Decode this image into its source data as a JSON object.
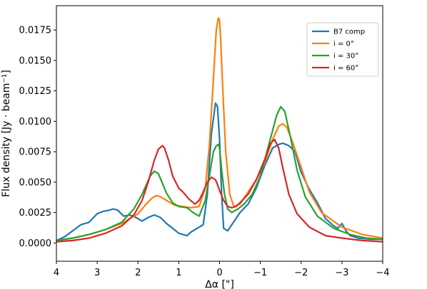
{
  "chart_data": {
    "type": "line",
    "xlabel": "Δα [\"]",
    "ylabel": "Flux density [Jy · beam⁻¹]",
    "xlim": [
      4,
      -4
    ],
    "ylim": [
      -0.0015,
      0.0195
    ],
    "x_ticks": [
      4,
      3,
      2,
      1,
      0,
      -1,
      -2,
      -3,
      -4
    ],
    "x_tick_labels": [
      "4",
      "3",
      "2",
      "1",
      "0",
      "−1",
      "−2",
      "−3",
      "−4"
    ],
    "y_ticks": [
      0,
      0.0025,
      0.005,
      0.0075,
      0.01,
      0.0125,
      0.015,
      0.0175
    ],
    "y_tick_labels": [
      "0.0000",
      "0.0025",
      "0.0050",
      "0.0075",
      "0.0100",
      "0.0125",
      "0.0150",
      "0.0175"
    ],
    "grid": false,
    "legend_position": "top-right",
    "series": [
      {
        "name": "B7 comp",
        "color": "#1f77b4",
        "x": [
          4.0,
          3.8,
          3.6,
          3.4,
          3.2,
          3.0,
          2.85,
          2.7,
          2.6,
          2.5,
          2.35,
          2.2,
          2.05,
          1.9,
          1.75,
          1.6,
          1.45,
          1.3,
          1.15,
          1.0,
          0.8,
          0.7,
          0.55,
          0.4,
          0.3,
          0.2,
          0.1,
          0.05,
          0.0,
          -0.05,
          -0.1,
          -0.2,
          -0.3,
          -0.4,
          -0.5,
          -0.7,
          -0.9,
          -1.1,
          -1.3,
          -1.45,
          -1.55,
          -1.7,
          -1.85,
          -2.0,
          -2.2,
          -2.4,
          -2.6,
          -2.8,
          -2.9,
          -3.0,
          -3.1,
          -3.2,
          -3.4,
          -3.7,
          -4.0
        ],
        "y": [
          0.0002,
          0.0005,
          0.001,
          0.0015,
          0.0017,
          0.0024,
          0.0026,
          0.0027,
          0.0028,
          0.0027,
          0.0022,
          0.0023,
          0.0021,
          0.0018,
          0.0021,
          0.0023,
          0.0021,
          0.0016,
          0.0012,
          0.0008,
          0.0006,
          0.0009,
          0.0012,
          0.0015,
          0.004,
          0.009,
          0.0115,
          0.0112,
          0.0085,
          0.004,
          0.0012,
          0.001,
          0.0015,
          0.002,
          0.0025,
          0.0032,
          0.0045,
          0.0063,
          0.0078,
          0.0081,
          0.0082,
          0.008,
          0.0075,
          0.0058,
          0.0044,
          0.0033,
          0.002,
          0.0014,
          0.0012,
          0.0016,
          0.001,
          0.0006,
          0.0004,
          0.0003,
          0.0003
        ]
      },
      {
        "name": "i = 0°",
        "color": "#ff7f0e",
        "x": [
          4.0,
          3.6,
          3.2,
          2.8,
          2.4,
          2.0,
          1.8,
          1.65,
          1.55,
          1.45,
          1.3,
          1.1,
          0.9,
          0.7,
          0.5,
          0.35,
          0.25,
          0.15,
          0.08,
          0.03,
          0.0,
          -0.03,
          -0.08,
          -0.15,
          -0.25,
          -0.35,
          -0.5,
          -0.7,
          -0.9,
          -1.1,
          -1.3,
          -1.45,
          -1.55,
          -1.65,
          -1.8,
          -2.0,
          -2.2,
          -2.5,
          -3.0,
          -3.5,
          -4.0
        ],
        "y": [
          0.0002,
          0.0004,
          0.0007,
          0.0011,
          0.0016,
          0.0024,
          0.0032,
          0.0037,
          0.0039,
          0.0038,
          0.0035,
          0.0031,
          0.003,
          0.0029,
          0.003,
          0.0045,
          0.008,
          0.0135,
          0.0175,
          0.0185,
          0.0183,
          0.0165,
          0.0125,
          0.0075,
          0.004,
          0.003,
          0.0032,
          0.0042,
          0.0052,
          0.0065,
          0.0085,
          0.0096,
          0.0098,
          0.0095,
          0.0082,
          0.0062,
          0.0042,
          0.0025,
          0.0013,
          0.0007,
          0.0004
        ]
      },
      {
        "name": "i = 30°",
        "color": "#2ca02c",
        "x": [
          4.0,
          3.6,
          3.2,
          2.8,
          2.4,
          2.1,
          1.9,
          1.7,
          1.6,
          1.5,
          1.4,
          1.3,
          1.15,
          1.0,
          0.8,
          0.65,
          0.5,
          0.35,
          0.25,
          0.15,
          0.08,
          0.03,
          0.0,
          -0.05,
          -0.12,
          -0.2,
          -0.3,
          -0.45,
          -0.6,
          -0.8,
          -1.0,
          -1.2,
          -1.4,
          -1.5,
          -1.6,
          -1.75,
          -1.9,
          -2.1,
          -2.4,
          -2.8,
          -3.2,
          -3.6,
          -4.0
        ],
        "y": [
          0.0002,
          0.0004,
          0.0007,
          0.0011,
          0.0017,
          0.0028,
          0.004,
          0.0055,
          0.0059,
          0.0057,
          0.0049,
          0.0041,
          0.0033,
          0.003,
          0.0029,
          0.0025,
          0.0022,
          0.0035,
          0.0055,
          0.0075,
          0.008,
          0.0081,
          0.0078,
          0.006,
          0.004,
          0.0028,
          0.0025,
          0.0028,
          0.0032,
          0.004,
          0.0055,
          0.008,
          0.0105,
          0.0112,
          0.0108,
          0.0085,
          0.006,
          0.0038,
          0.0022,
          0.0012,
          0.0007,
          0.0004,
          0.0003
        ]
      },
      {
        "name": "i = 60°",
        "color": "#d62728",
        "x": [
          4.0,
          3.6,
          3.2,
          2.8,
          2.4,
          2.1,
          1.9,
          1.75,
          1.6,
          1.5,
          1.4,
          1.35,
          1.25,
          1.15,
          1.0,
          0.9,
          0.75,
          0.6,
          0.5,
          0.4,
          0.3,
          0.2,
          0.1,
          0.05,
          0.0,
          -0.1,
          -0.2,
          -0.3,
          -0.4,
          -0.5,
          -0.7,
          -0.9,
          -1.1,
          -1.25,
          -1.35,
          -1.45,
          -1.55,
          -1.7,
          -1.9,
          -2.2,
          -2.6,
          -3.0,
          -3.5,
          -4.0
        ],
        "y": [
          0.0001,
          0.0002,
          0.0004,
          0.0008,
          0.0014,
          0.0023,
          0.0035,
          0.005,
          0.0068,
          0.0077,
          0.008,
          0.0078,
          0.0068,
          0.0055,
          0.0045,
          0.0042,
          0.0036,
          0.0032,
          0.0035,
          0.0042,
          0.005,
          0.0054,
          0.0052,
          0.0048,
          0.0043,
          0.0035,
          0.003,
          0.0029,
          0.003,
          0.0033,
          0.004,
          0.0052,
          0.0068,
          0.0082,
          0.0085,
          0.0078,
          0.0062,
          0.004,
          0.0024,
          0.0013,
          0.0006,
          0.0004,
          0.0002,
          0.0001
        ]
      }
    ]
  }
}
